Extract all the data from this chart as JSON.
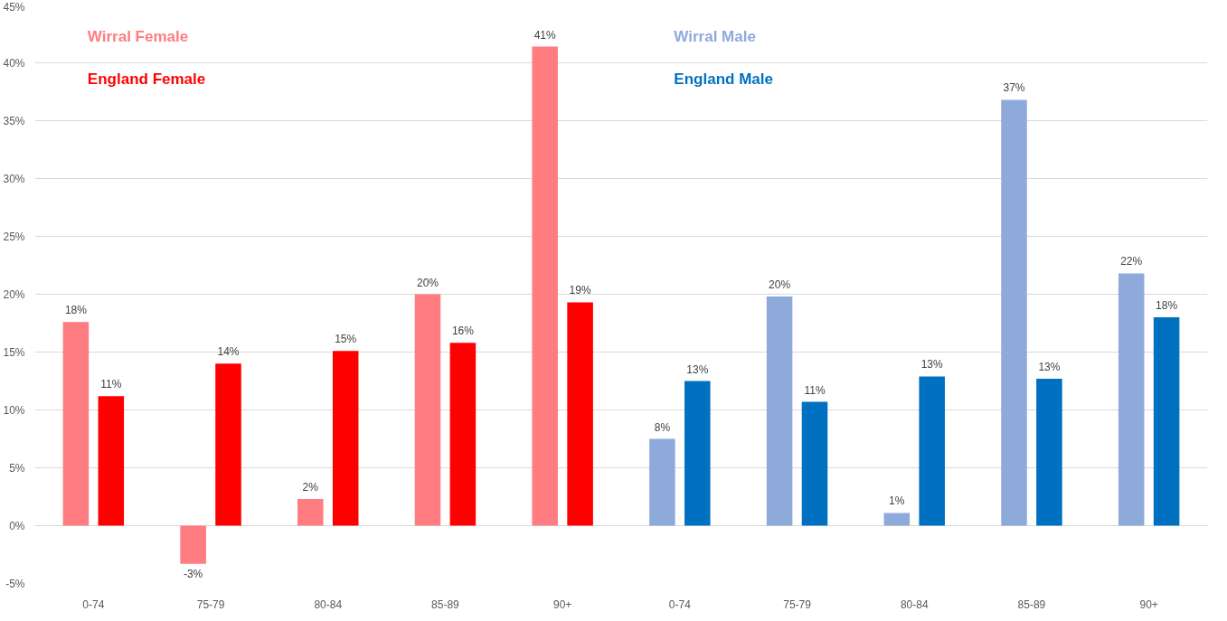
{
  "chart_data": {
    "type": "bar",
    "categories": [
      "0-74",
      "75-79",
      "80-84",
      "85-89",
      "90+",
      "0-74",
      "75-79",
      "80-84",
      "85-89",
      "90+"
    ],
    "series": [
      {
        "name": "Wirral Female",
        "color": "#ff7c80",
        "values": [
          17.6,
          -3.3,
          2.3,
          20.0,
          41.4,
          null,
          null,
          null,
          null,
          null
        ],
        "value_labels": [
          "18%",
          "-3%",
          "2%",
          "20%",
          "41%",
          null,
          null,
          null,
          null,
          null
        ]
      },
      {
        "name": "England Female",
        "color": "#ff0000",
        "values": [
          11.2,
          14.0,
          15.1,
          15.8,
          19.3,
          null,
          null,
          null,
          null,
          null
        ],
        "value_labels": [
          "11%",
          "14%",
          "15%",
          "16%",
          "19%",
          null,
          null,
          null,
          null,
          null
        ]
      },
      {
        "name": "Wirral Male",
        "color": "#8eaadb",
        "values": [
          null,
          null,
          null,
          null,
          null,
          7.5,
          19.8,
          1.1,
          36.8,
          21.8
        ],
        "value_labels": [
          null,
          null,
          null,
          null,
          null,
          "8%",
          "20%",
          "1%",
          "37%",
          "22%"
        ]
      },
      {
        "name": "England Male",
        "color": "#0070c0",
        "values": [
          null,
          null,
          null,
          null,
          null,
          12.5,
          10.7,
          12.9,
          12.7,
          18.0
        ],
        "value_labels": [
          null,
          null,
          null,
          null,
          null,
          "13%",
          "11%",
          "13%",
          "13%",
          "18%"
        ]
      }
    ],
    "ylim": [
      -5,
      45
    ],
    "yticks": [
      {
        "value": -5,
        "label": "-5%"
      },
      {
        "value": 0,
        "label": "0%"
      },
      {
        "value": 5,
        "label": "5%"
      },
      {
        "value": 10,
        "label": "10%"
      },
      {
        "value": 15,
        "label": "15%"
      },
      {
        "value": 20,
        "label": "20%"
      },
      {
        "value": 25,
        "label": "25%"
      },
      {
        "value": 30,
        "label": "30%"
      },
      {
        "value": 35,
        "label": "35%"
      },
      {
        "value": 40,
        "label": "40%"
      },
      {
        "value": 45,
        "label": "45%"
      }
    ],
    "grid": "y"
  }
}
